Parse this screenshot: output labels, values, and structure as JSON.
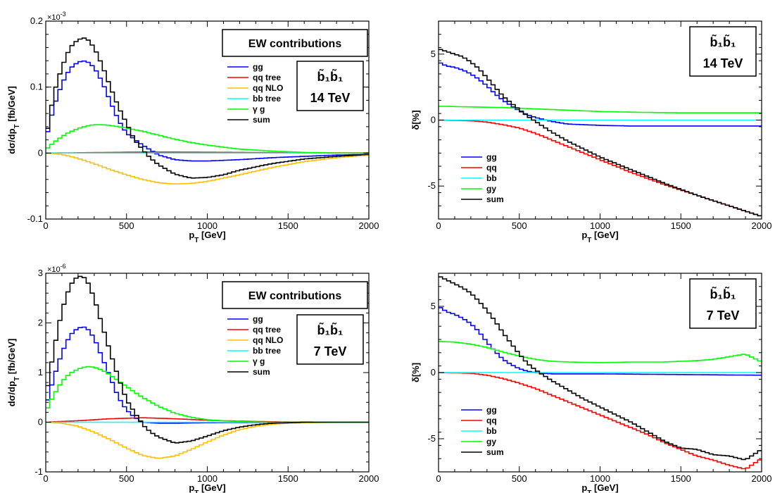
{
  "chart_data": [
    {
      "type": "line",
      "xlabel": "p_T [GeV]",
      "ylabel": "dσ/dp_T [fb/GeV]",
      "xlim": [
        0,
        2000
      ],
      "ylim": [
        -0.1,
        0.2
      ],
      "y_multiplier": "×10^-3",
      "xticks": [
        "0",
        "500",
        "1000",
        "1500",
        "2000"
      ],
      "yticks": [
        "-0.1",
        "0",
        "0.1",
        "0.2"
      ],
      "legend_title": "EW contributions",
      "process_label": "b̃₁b̃₁",
      "energy_label": "14 TeV",
      "series": [
        {
          "name": "gg",
          "color": "#0000ff",
          "x": [
            0,
            50,
            100,
            150,
            200,
            250,
            300,
            350,
            400,
            450,
            500,
            600,
            700,
            800,
            900,
            1000,
            1200,
            1400,
            1600,
            1800,
            2000
          ],
          "y": [
            0.02,
            0.07,
            0.105,
            0.128,
            0.138,
            0.14,
            0.13,
            0.108,
            0.078,
            0.05,
            0.03,
            0.012,
            -0.003,
            -0.01,
            -0.012,
            -0.012,
            -0.01,
            -0.007,
            -0.005,
            -0.003,
            -0.002
          ]
        },
        {
          "name": "qq tree",
          "color": "#ff0000",
          "x": [
            0,
            200,
            400,
            600,
            800,
            1000,
            1200,
            1500,
            2000
          ],
          "y": [
            0,
            0.0005,
            0.001,
            0.0015,
            0.0015,
            0.0012,
            0.001,
            0.0005,
            0.0002
          ]
        },
        {
          "name": "qq NLO",
          "color": "#ffbf00",
          "x": [
            0,
            100,
            200,
            300,
            400,
            500,
            600,
            700,
            800,
            900,
            1000,
            1200,
            1400,
            1600,
            1800,
            2000
          ],
          "y": [
            0,
            -0.002,
            -0.008,
            -0.016,
            -0.025,
            -0.033,
            -0.04,
            -0.045,
            -0.047,
            -0.046,
            -0.043,
            -0.033,
            -0.022,
            -0.013,
            -0.007,
            -0.003
          ]
        },
        {
          "name": "bb tree",
          "color": "#00ffff",
          "x": [
            0,
            500,
            1000,
            1500,
            2000
          ],
          "y": [
            0,
            0,
            0,
            0,
            0
          ]
        },
        {
          "name": "γ g",
          "color": "#00ff00",
          "x": [
            0,
            50,
            100,
            150,
            200,
            250,
            300,
            350,
            400,
            500,
            600,
            700,
            800,
            900,
            1000,
            1200,
            1400,
            1600,
            1800,
            2000
          ],
          "y": [
            0.005,
            0.016,
            0.025,
            0.032,
            0.037,
            0.041,
            0.043,
            0.043,
            0.042,
            0.038,
            0.033,
            0.027,
            0.021,
            0.016,
            0.012,
            0.006,
            0.003,
            0.001,
            0,
            0
          ]
        },
        {
          "name": "sum",
          "color": "#000000",
          "x": [
            0,
            50,
            100,
            150,
            200,
            250,
            300,
            350,
            400,
            450,
            500,
            550,
            600,
            650,
            700,
            800,
            900,
            1000,
            1100,
            1200,
            1400,
            1600,
            1800,
            2000
          ],
          "y": [
            0.02,
            0.09,
            0.13,
            0.16,
            0.172,
            0.175,
            0.16,
            0.133,
            0.1,
            0.07,
            0.045,
            0.02,
            0.005,
            -0.008,
            -0.018,
            -0.032,
            -0.038,
            -0.037,
            -0.033,
            -0.026,
            -0.016,
            -0.009,
            -0.005,
            -0.002
          ]
        }
      ]
    },
    {
      "type": "line",
      "xlabel": "p_T [GeV]",
      "ylabel": "δ[%]",
      "xlim": [
        0,
        2000
      ],
      "ylim": [
        -7.5,
        7.5
      ],
      "xticks": [
        "0",
        "500",
        "1000",
        "1500",
        "2000"
      ],
      "yticks": [
        "-5",
        "0",
        "5"
      ],
      "process_label": "b̃₁b̃₁",
      "energy_label": "14 TeV",
      "series": [
        {
          "name": "gg",
          "color": "#0000ff",
          "x": [
            0,
            50,
            100,
            150,
            200,
            250,
            300,
            350,
            400,
            450,
            500,
            550,
            600,
            700,
            800,
            1000,
            1200,
            1500,
            2000
          ],
          "y": [
            4.4,
            4.1,
            4.0,
            3.8,
            3.5,
            3.1,
            2.6,
            2.0,
            1.5,
            1.1,
            0.7,
            0.4,
            0.2,
            -0.1,
            -0.3,
            -0.4,
            -0.45,
            -0.45,
            -0.45
          ]
        },
        {
          "name": "qq",
          "color": "#ff0000",
          "x": [
            0,
            200,
            300,
            400,
            500,
            600,
            700,
            800,
            900,
            1000,
            1200,
            1400,
            1600,
            1800,
            2000
          ],
          "y": [
            0,
            -0.05,
            -0.15,
            -0.35,
            -0.6,
            -1.0,
            -1.5,
            -2.0,
            -2.5,
            -3.0,
            -4.0,
            -4.9,
            -5.7,
            -6.5,
            -7.3
          ]
        },
        {
          "name": "bb",
          "color": "#00ffff",
          "x": [
            0,
            500,
            1000,
            1500,
            2000
          ],
          "y": [
            0,
            0,
            0,
            0,
            0
          ]
        },
        {
          "name": "gy",
          "color": "#00ff00",
          "x": [
            0,
            200,
            400,
            600,
            800,
            1000,
            1200,
            1500,
            2000
          ],
          "y": [
            1.05,
            1.0,
            0.95,
            0.85,
            0.75,
            0.65,
            0.6,
            0.55,
            0.55
          ]
        },
        {
          "name": "sum",
          "color": "#000000",
          "x": [
            0,
            50,
            100,
            150,
            200,
            250,
            300,
            350,
            400,
            450,
            500,
            550,
            600,
            700,
            800,
            900,
            1000,
            1200,
            1400,
            1600,
            1800,
            2000
          ],
          "y": [
            5.4,
            5.2,
            5.0,
            4.8,
            4.4,
            3.9,
            3.2,
            2.5,
            1.8,
            1.3,
            0.8,
            0.3,
            -0.1,
            -0.9,
            -1.6,
            -2.2,
            -2.8,
            -3.8,
            -4.8,
            -5.7,
            -6.5,
            -7.3
          ]
        }
      ]
    },
    {
      "type": "line",
      "xlabel": "p_T [GeV]",
      "ylabel": "dσ/dp_T [fb/GeV]",
      "xlim": [
        0,
        2000
      ],
      "ylim": [
        -1,
        3
      ],
      "y_multiplier": "×10^-6",
      "xticks": [
        "0",
        "500",
        "1000",
        "1500",
        "2000"
      ],
      "yticks": [
        "-1",
        "0",
        "1",
        "2",
        "3"
      ],
      "legend_title": "EW contributions",
      "process_label": "b̃₁b̃₁",
      "energy_label": "7 TeV",
      "series": [
        {
          "name": "gg",
          "color": "#0000ff",
          "x": [
            0,
            50,
            100,
            150,
            200,
            250,
            300,
            350,
            400,
            450,
            500,
            550,
            600,
            700,
            800,
            1000,
            1500,
            2000
          ],
          "y": [
            0.3,
            0.9,
            1.4,
            1.75,
            1.9,
            1.92,
            1.7,
            1.3,
            0.9,
            0.5,
            0.25,
            0.1,
            0.0,
            -0.02,
            -0.02,
            -0.01,
            0,
            0
          ]
        },
        {
          "name": "qq tree",
          "color": "#ff0000",
          "x": [
            0,
            200,
            400,
            600,
            800,
            1000,
            1200,
            1500,
            2000
          ],
          "y": [
            0,
            0.03,
            0.07,
            0.09,
            0.07,
            0.04,
            0.02,
            0.005,
            0
          ]
        },
        {
          "name": "qq NLO",
          "color": "#ffbf00",
          "x": [
            0,
            100,
            200,
            300,
            400,
            500,
            600,
            700,
            800,
            900,
            1000,
            1100,
            1200,
            1300,
            1400,
            1500,
            1700,
            2000
          ],
          "y": [
            0,
            -0.02,
            -0.08,
            -0.2,
            -0.35,
            -0.52,
            -0.67,
            -0.73,
            -0.68,
            -0.55,
            -0.4,
            -0.26,
            -0.15,
            -0.08,
            -0.04,
            -0.02,
            -0.005,
            0
          ]
        },
        {
          "name": "bb tree",
          "color": "#00ffff",
          "x": [
            0,
            500,
            1000,
            1500,
            2000
          ],
          "y": [
            0,
            0,
            0,
            0,
            0
          ]
        },
        {
          "name": "γ g",
          "color": "#00ff00",
          "x": [
            0,
            50,
            100,
            150,
            200,
            250,
            300,
            350,
            400,
            500,
            600,
            700,
            800,
            900,
            1000,
            1200,
            1400,
            1600,
            1800,
            2000
          ],
          "y": [
            0.2,
            0.55,
            0.82,
            0.98,
            1.07,
            1.12,
            1.11,
            1.05,
            0.95,
            0.72,
            0.5,
            0.32,
            0.18,
            0.1,
            0.05,
            0.01,
            0,
            0,
            0,
            0
          ]
        },
        {
          "name": "sum",
          "color": "#000000",
          "x": [
            0,
            50,
            100,
            150,
            200,
            250,
            300,
            350,
            400,
            450,
            500,
            550,
            600,
            650,
            700,
            800,
            900,
            1000,
            1100,
            1200,
            1300,
            1400,
            1500,
            1600,
            1800,
            2000
          ],
          "y": [
            0.5,
            1.45,
            2.25,
            2.75,
            2.95,
            2.9,
            2.5,
            1.95,
            1.4,
            0.9,
            0.45,
            0.2,
            -0.05,
            -0.2,
            -0.3,
            -0.42,
            -0.38,
            -0.28,
            -0.17,
            -0.1,
            -0.05,
            -0.02,
            -0.01,
            0,
            0,
            0
          ]
        }
      ]
    },
    {
      "type": "line",
      "xlabel": "p_T [GeV]",
      "ylabel": "δ[%]",
      "xlim": [
        0,
        2000
      ],
      "ylim": [
        -7.5,
        7.5
      ],
      "xticks": [
        "0",
        "500",
        "1000",
        "1500",
        "2000"
      ],
      "yticks": [
        "-5",
        "0",
        "5"
      ],
      "process_label": "b̃₁b̃₁",
      "energy_label": "7 TeV",
      "series": [
        {
          "name": "gg",
          "color": "#0000ff",
          "x": [
            0,
            50,
            100,
            150,
            200,
            250,
            300,
            350,
            400,
            450,
            500,
            550,
            600,
            700,
            800,
            1000,
            1500,
            2000
          ],
          "y": [
            5.0,
            4.6,
            4.4,
            4.1,
            3.7,
            3.1,
            2.3,
            1.6,
            1.0,
            0.6,
            0.3,
            0.1,
            0.0,
            -0.1,
            -0.1,
            -0.1,
            -0.15,
            -0.2
          ]
        },
        {
          "name": "qq",
          "color": "#ff0000",
          "x": [
            0,
            200,
            300,
            400,
            500,
            600,
            700,
            800,
            900,
            1000,
            1100,
            1200,
            1300,
            1400,
            1500,
            1600,
            1700,
            1800,
            1900,
            2000
          ],
          "y": [
            0,
            -0.05,
            -0.2,
            -0.45,
            -0.8,
            -1.2,
            -1.7,
            -2.2,
            -2.7,
            -3.2,
            -3.7,
            -4.2,
            -4.7,
            -5.3,
            -5.8,
            -6.3,
            -6.6,
            -7.0,
            -7.3,
            -6.5
          ]
        },
        {
          "name": "bb",
          "color": "#00ffff",
          "x": [
            0,
            500,
            1000,
            1500,
            2000
          ],
          "y": [
            0,
            0,
            0,
            0,
            0
          ]
        },
        {
          "name": "gy",
          "color": "#00ff00",
          "x": [
            0,
            100,
            200,
            300,
            400,
            500,
            600,
            700,
            800,
            1000,
            1200,
            1400,
            1600,
            1700,
            1800,
            1900,
            2000
          ],
          "y": [
            2.35,
            2.3,
            2.15,
            1.9,
            1.55,
            1.25,
            1.0,
            0.85,
            0.8,
            0.75,
            0.8,
            0.8,
            0.9,
            1.0,
            1.2,
            1.4,
            0.8
          ]
        },
        {
          "name": "sum",
          "color": "#000000",
          "x": [
            0,
            50,
            100,
            150,
            200,
            250,
            300,
            350,
            400,
            450,
            500,
            550,
            600,
            700,
            800,
            900,
            1000,
            1100,
            1200,
            1300,
            1400,
            1500,
            1600,
            1700,
            1800,
            1900,
            2000
          ],
          "y": [
            7.3,
            7.0,
            6.7,
            6.4,
            6.0,
            5.4,
            4.7,
            3.9,
            3.0,
            2.2,
            1.4,
            0.7,
            0.2,
            -0.6,
            -1.3,
            -2.0,
            -2.6,
            -3.2,
            -3.8,
            -4.5,
            -5.2,
            -5.7,
            -5.8,
            -6.2,
            -6.3,
            -6.6,
            -5.8
          ]
        }
      ]
    }
  ]
}
